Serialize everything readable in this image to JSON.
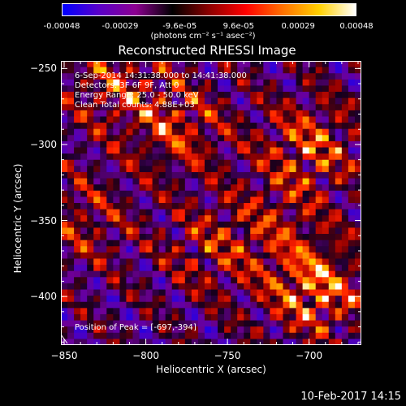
{
  "colorbar": {
    "ticks": [
      "-0.00048",
      "-0.00029",
      "-9.6e-05",
      "9.6e-05",
      "0.00029",
      "0.00048"
    ],
    "tick_values": [
      -0.00048,
      -0.00029,
      -9.6e-05,
      9.6e-05,
      0.00029,
      0.00048
    ],
    "unit_label": "(photons cm⁻² s⁻¹ asec⁻²)",
    "colormap": [
      "#0000ff",
      "#5a00c8",
      "#8c0090",
      "#000000",
      "#8c0000",
      "#ff0000",
      "#ff7000",
      "#ffd000",
      "#ffffff"
    ]
  },
  "chart_data": {
    "type": "heatmap",
    "title": "Reconstructed RHESSI Image",
    "xlabel": "Heliocentric X (arcsec)",
    "ylabel": "Heliocentric Y (arcsec)",
    "xlim": [
      -852,
      -668
    ],
    "ylim": [
      -432,
      -245
    ],
    "x_ticks": [
      -850,
      -800,
      -750,
      -700
    ],
    "x_tick_labels": [
      "−850",
      "−800",
      "−750",
      "−700"
    ],
    "y_ticks": [
      -250,
      -300,
      -350,
      -400
    ],
    "y_tick_labels": [
      "−250",
      "−300",
      "−350",
      "−400"
    ],
    "zlim": [
      -0.00048,
      0.00048
    ],
    "annotations": [
      "6-Sep-2014 14:31:38.000 to 14:41:38.000",
      "Detectors: 3F 6F 9F, Att 0",
      "Energy Range: 25.0 - 50.0 keV",
      "Clean     Total counts: 4.88E+03"
    ],
    "peak_label": "Position of Peak = [-697,-394]",
    "peak": [
      -697,
      -394
    ]
  },
  "timestamp": "10-Feb-2017 14:15"
}
